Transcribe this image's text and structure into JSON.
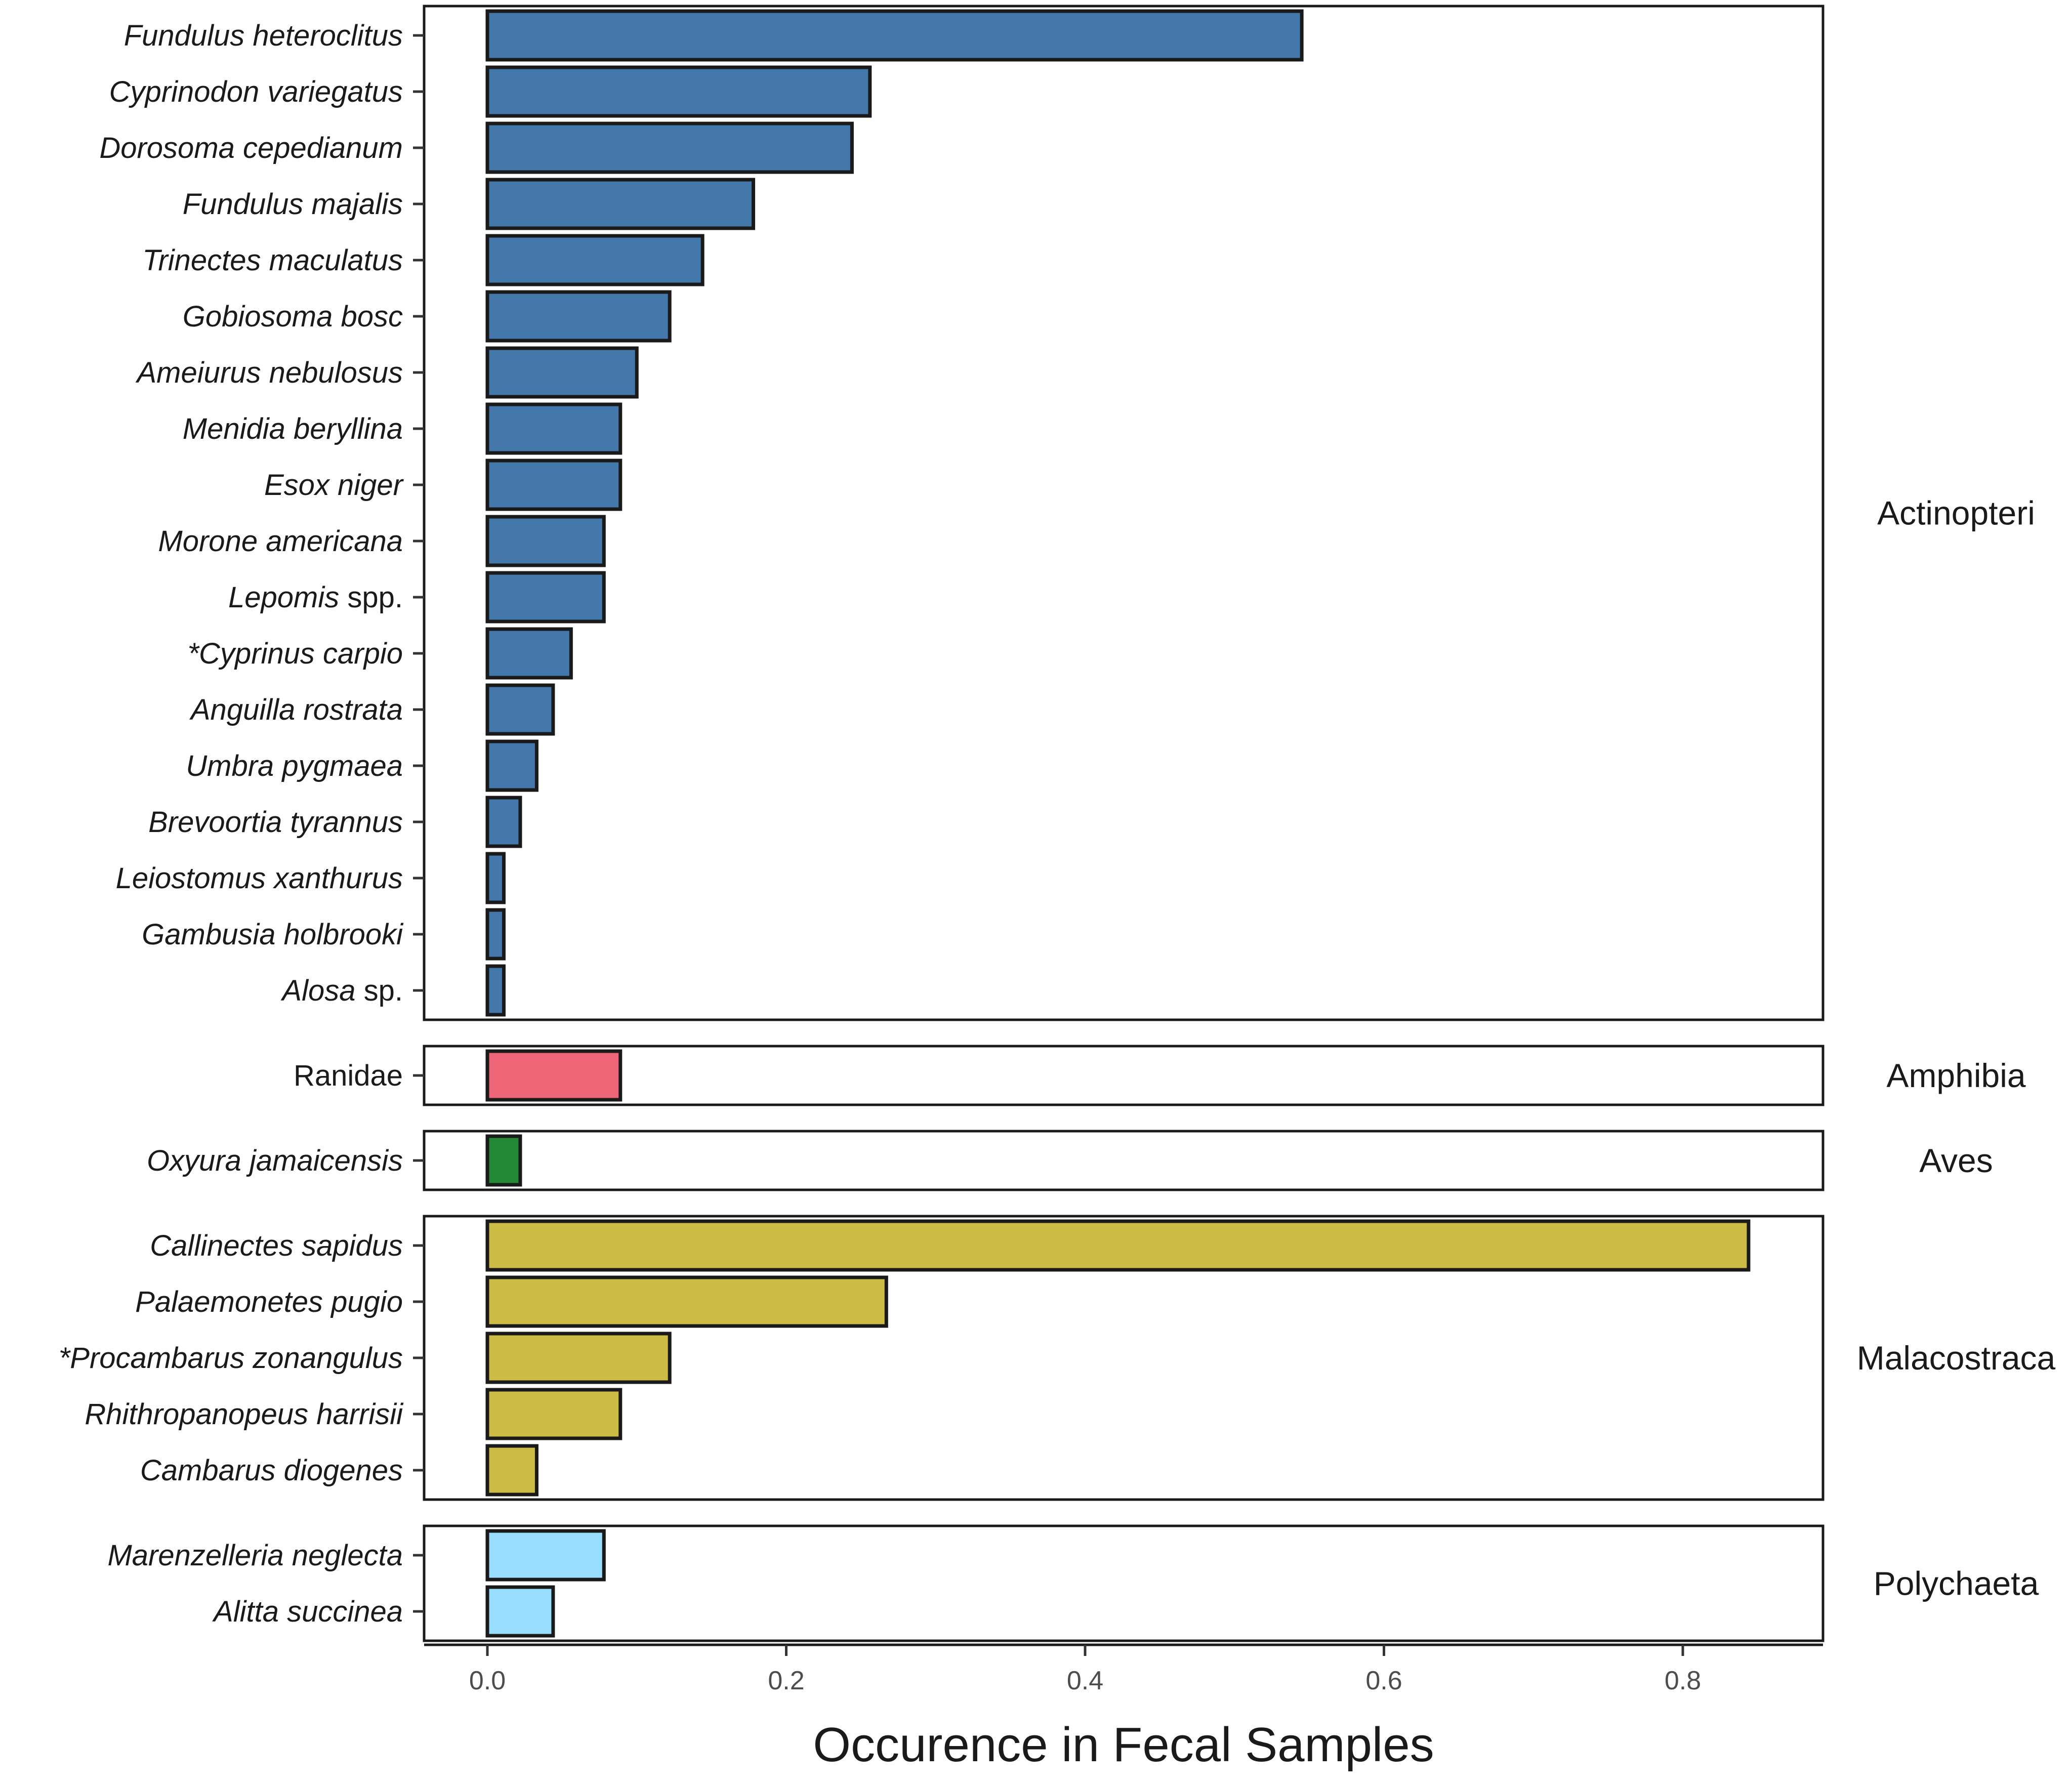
{
  "chart_data": {
    "type": "bar",
    "orientation": "horizontal",
    "xlabel": "Occurence in Fecal Samples",
    "xlim": [
      -0.053,
      0.89
    ],
    "xticks": [
      0.0,
      0.2,
      0.4,
      0.6,
      0.8
    ],
    "xtick_labels": [
      "0.0",
      "0.2",
      "0.4",
      "0.6",
      "0.8"
    ],
    "panels": [
      {
        "group": "Actinopteri",
        "color": "#4477AA",
        "bars": [
          {
            "label": "Fundulus heteroclitus",
            "italic": "Fundulus heteroclitus",
            "plain": "",
            "value": 0.545
          },
          {
            "label": "Cyprinodon variegatus",
            "italic": "Cyprinodon variegatus",
            "plain": "",
            "value": 0.256
          },
          {
            "label": "Dorosoma cepedianum",
            "italic": "Dorosoma cepedianum",
            "plain": "",
            "value": 0.244
          },
          {
            "label": "Fundulus majalis",
            "italic": "Fundulus majalis",
            "plain": "",
            "value": 0.178
          },
          {
            "label": "Trinectes maculatus",
            "italic": "Trinectes maculatus",
            "plain": "",
            "value": 0.144
          },
          {
            "label": "Gobiosoma bosc",
            "italic": "Gobiosoma bosc",
            "plain": "",
            "value": 0.122
          },
          {
            "label": "Ameiurus nebulosus",
            "italic": "Ameiurus nebulosus",
            "plain": "",
            "value": 0.1
          },
          {
            "label": "Menidia beryllina",
            "italic": "Menidia beryllina",
            "plain": "",
            "value": 0.089
          },
          {
            "label": "Esox niger",
            "italic": "Esox niger",
            "plain": "",
            "value": 0.089
          },
          {
            "label": "Morone americana",
            "italic": "Morone americana",
            "plain": "",
            "value": 0.078
          },
          {
            "label": "Lepomis spp.",
            "italic": "Lepomis",
            "plain": " spp.",
            "value": 0.078
          },
          {
            "label": "*Cyprinus carpio",
            "italic": "*Cyprinus carpio",
            "plain": "",
            "value": 0.056
          },
          {
            "label": "Anguilla rostrata",
            "italic": "Anguilla rostrata",
            "plain": "",
            "value": 0.044
          },
          {
            "label": "Umbra pygmaea",
            "italic": "Umbra pygmaea",
            "plain": "",
            "value": 0.033
          },
          {
            "label": "Brevoortia tyrannus",
            "italic": "Brevoortia tyrannus",
            "plain": "",
            "value": 0.022
          },
          {
            "label": "Leiostomus xanthurus",
            "italic": "Leiostomus xanthurus",
            "plain": "",
            "value": 0.011
          },
          {
            "label": "Gambusia holbrooki",
            "italic": "Gambusia holbrooki",
            "plain": "",
            "value": 0.011
          },
          {
            "label": "Alosa sp.",
            "italic": "Alosa",
            "plain": " sp.",
            "value": 0.011
          }
        ]
      },
      {
        "group": "Amphibia",
        "color": "#EE6677",
        "bars": [
          {
            "label": "Ranidae",
            "italic": "",
            "plain": "Ranidae",
            "value": 0.089
          }
        ]
      },
      {
        "group": "Aves",
        "color": "#228833",
        "bars": [
          {
            "label": "Oxyura jamaicensis",
            "italic": "Oxyura jamaicensis",
            "plain": "",
            "value": 0.022
          }
        ]
      },
      {
        "group": "Malacostraca",
        "color": "#CCBB44",
        "bars": [
          {
            "label": "Callinectes sapidus",
            "italic": "Callinectes sapidus",
            "plain": "",
            "value": 0.844
          },
          {
            "label": "Palaemonetes pugio",
            "italic": "Palaemonetes pugio",
            "plain": "",
            "value": 0.267
          },
          {
            "label": "*Procambarus zonangulus",
            "italic": "*Procambarus zonangulus",
            "plain": "",
            "value": 0.122
          },
          {
            "label": "Rhithropanopeus harrisii",
            "italic": "Rhithropanopeus harrisii",
            "plain": "",
            "value": 0.089
          },
          {
            "label": "Cambarus diogenes",
            "italic": "Cambarus diogenes",
            "plain": "",
            "value": 0.033
          }
        ]
      },
      {
        "group": "Polychaeta",
        "color": "#99DDFF",
        "bars": [
          {
            "label": "Marenzelleria neglecta",
            "italic": "Marenzelleria neglecta",
            "plain": "",
            "value": 0.078
          },
          {
            "label": "Alitta succinea",
            "italic": "Alitta succinea",
            "plain": "",
            "value": 0.044
          }
        ]
      }
    ]
  }
}
